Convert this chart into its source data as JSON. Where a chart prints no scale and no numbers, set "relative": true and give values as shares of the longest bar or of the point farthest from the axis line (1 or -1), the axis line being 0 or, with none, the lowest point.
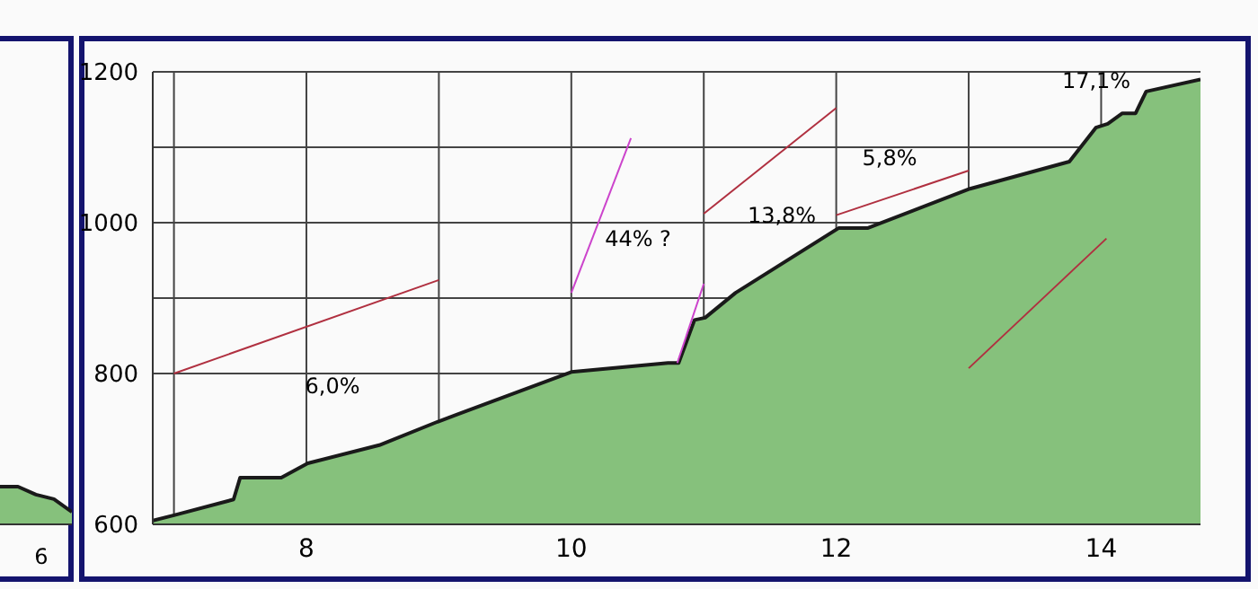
{
  "chart_data": [
    {
      "type": "area",
      "categories": [
        null,
        null,
        null,
        null,
        null
      ],
      "relative": true,
      "legend": false,
      "series": [
        {
          "color": "#86c17c",
          "values": [
            1,
            1,
            0.79,
            0.67,
            0.33
          ]
        }
      ],
      "annotations": [
        "6"
      ]
    },
    {
      "type": "area",
      "xlim": [
        6.84,
        14.75
      ],
      "xticks": [
        {
          "value": 7,
          "label": null
        },
        8,
        {
          "value": 9,
          "label": null
        },
        10,
        {
          "value": 11,
          "label": null
        },
        12,
        {
          "value": 13,
          "label": null
        },
        14
      ],
      "ylim": [
        600,
        1200
      ],
      "yticks": [
        600,
        800,
        {
          "value": 900,
          "label": null
        },
        1000,
        {
          "value": 1100,
          "label": null
        },
        1200
      ],
      "grid": true,
      "legend": false,
      "series": [
        {
          "color": "#86c17c",
          "x": [
            6.84,
            7.0,
            7.45,
            7.5,
            7.81,
            8.01,
            8.55,
            8.99,
            10.0,
            10.73,
            10.81,
            10.93,
            11.01,
            11.24,
            12.02,
            12.24,
            13.01,
            13.76,
            13.96,
            14.05,
            14.16,
            14.26,
            14.34,
            14.75
          ],
          "values": [
            605,
            612,
            633,
            662,
            662,
            681,
            705,
            736,
            802,
            814,
            814,
            871,
            874,
            907,
            993,
            993,
            1045,
            1081,
            1126,
            1131,
            1145,
            1145,
            1174,
            1190
          ]
        },
        {
          "type": "line",
          "color": "#b03040",
          "x": [
            7,
            9
          ],
          "values": [
            800,
            924
          ]
        },
        {
          "type": "line",
          "color": "#cc44cc",
          "x": [
            10,
            10.45
          ],
          "values": [
            907,
            1112
          ]
        },
        {
          "type": "line",
          "color": "#cc44cc",
          "x": [
            10.8,
            11
          ],
          "values": [
            814,
            919
          ]
        },
        {
          "type": "line",
          "color": "#b03040",
          "x": [
            11,
            12
          ],
          "values": [
            1012,
            1152
          ]
        },
        {
          "type": "line",
          "color": "#b03040",
          "x": [
            12,
            13
          ],
          "values": [
            1010,
            1069
          ]
        },
        {
          "type": "line",
          "color": "#b03040",
          "x": [
            13,
            14.04
          ],
          "values": [
            807,
            979
          ]
        }
      ],
      "annotations": [
        "6,0%",
        "44% ?",
        "13,8%",
        "5,8%",
        "17,1%"
      ]
    }
  ]
}
